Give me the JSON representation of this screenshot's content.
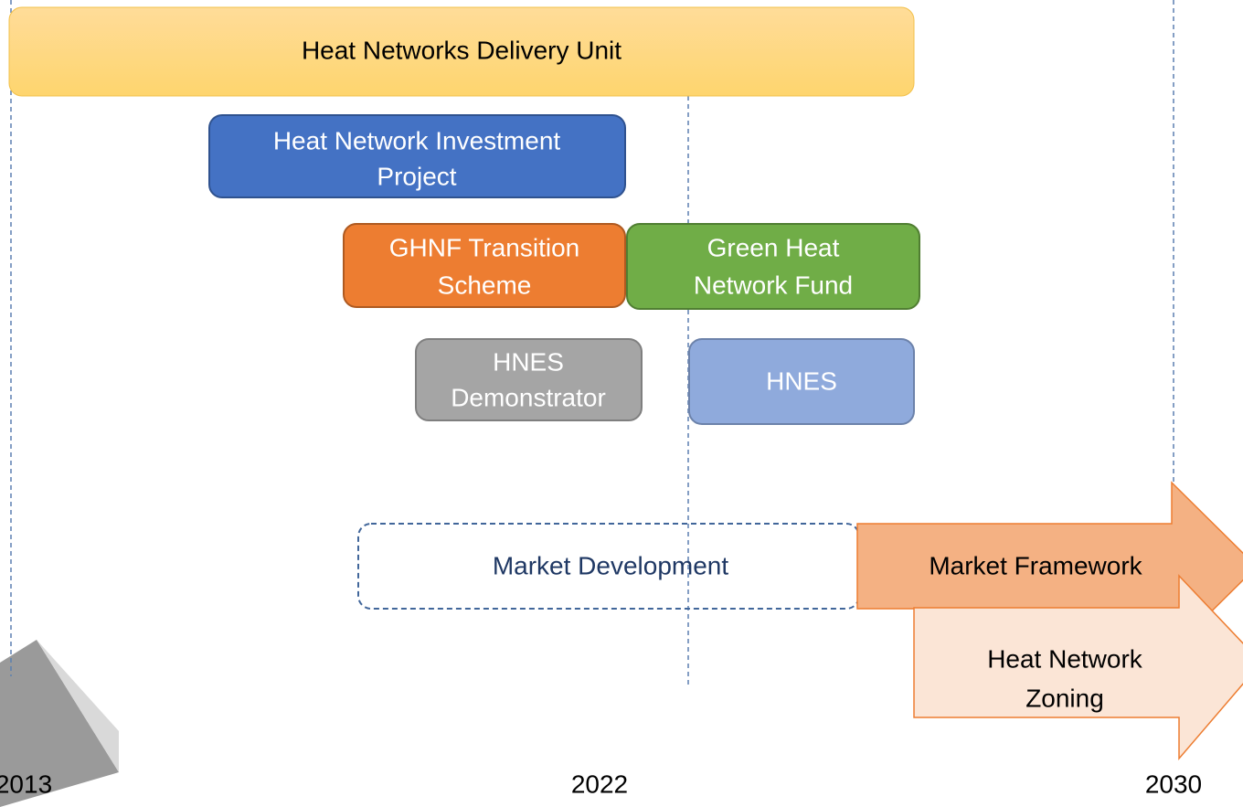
{
  "nodes": [
    {
      "label": [
        "Heat Networks Delivery Unit"
      ]
    },
    {
      "label": [
        "Heat Network Investment",
        "Project"
      ]
    },
    {
      "label": [
        "GHNF Transition",
        "Scheme"
      ]
    },
    {
      "label": [
        "Green Heat",
        "Network Fund"
      ]
    },
    {
      "label": [
        "HNES",
        "Demonstrator"
      ]
    },
    {
      "label": [
        "HNES"
      ]
    },
    {
      "label": [
        "Market Development"
      ]
    },
    {
      "label": [
        "Market Framework"
      ]
    },
    {
      "label": [
        "Heat Network",
        "Zoning"
      ]
    }
  ],
  "years": [
    "2013",
    "2022",
    "2030"
  ]
}
